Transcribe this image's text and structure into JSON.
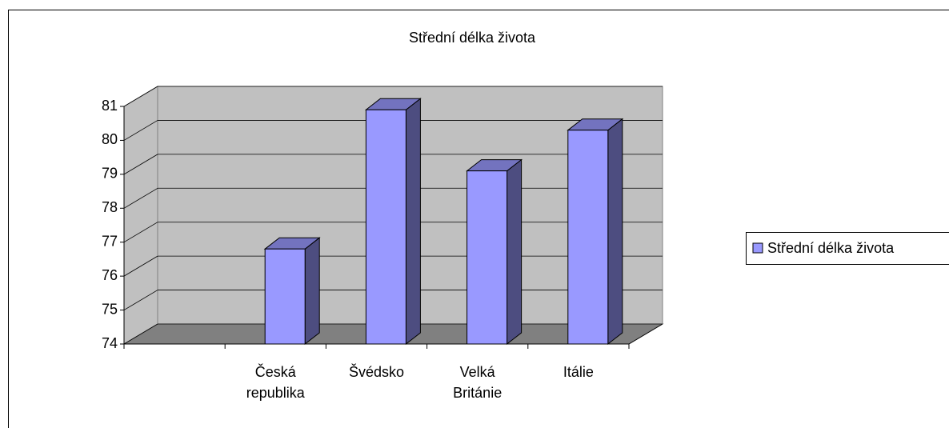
{
  "chart_data": {
    "type": "bar3d",
    "title": "Střední délka života",
    "categories": [
      null,
      "Česká republika",
      "Švédsko",
      "Velká Británie",
      "Itálie"
    ],
    "series": [
      {
        "name": "Střední délka života",
        "color": "#9999ff",
        "values": [
          null,
          76.8,
          80.9,
          79.1,
          80.3
        ]
      }
    ],
    "ylim": [
      74,
      81
    ],
    "yticks": [
      74,
      75,
      76,
      77,
      78,
      79,
      80,
      81
    ],
    "grid": true,
    "legend": "right"
  }
}
